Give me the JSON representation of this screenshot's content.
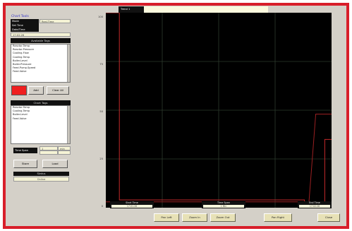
{
  "app_title": "Chart Tools",
  "controls": {
    "row1_left": "Mode",
    "row1_right": "Real-Time",
    "row2": "Set Time",
    "row3": "Date/Time",
    "row4": "17:02:26"
  },
  "available_tags": {
    "header": "Available Tags",
    "items": [
      "Reactor.Temp",
      "Reactor.Pressure",
      "Cooling.Flow",
      "Cooling.Temp",
      "Boiler.Level",
      "Boiler.Pressure",
      "Feed.Pump.Speed",
      "Feed.Valve"
    ]
  },
  "pen": {
    "color": "#ef1f1f",
    "add_label": "Add",
    "clear_label": "Clear All"
  },
  "chart_tags": {
    "header": "Chart Tags",
    "items": [
      "Reactor.Temp",
      "Cooling.Temp",
      "Boiler.Level",
      "Feed.Valve"
    ]
  },
  "span": {
    "label": "Time Span",
    "value": "1",
    "unit": "min"
  },
  "buttons": {
    "store": "Store",
    "load": "Load"
  },
  "footer_panel": {
    "label": "Status",
    "value": "Online"
  },
  "chart": {
    "title": "Trend 1",
    "subtitle": "",
    "y_ticks": [
      "100",
      "75",
      "50",
      "25",
      "0"
    ],
    "left_axis": {
      "label": "Start Time",
      "value": "17:01:26"
    },
    "center_axis": {
      "label": "Time Span",
      "value": "1 Min"
    },
    "right_axis": {
      "label": "End Time",
      "value": "17:02:26"
    }
  },
  "bottom_buttons": {
    "pan_left": "Pan Left",
    "zoom_in": "Zoom In",
    "zoom_out": "Zoom Out",
    "pan_right": "Pan Right",
    "close": "Close"
  },
  "chart_data": {
    "type": "line",
    "title": "Trend 1",
    "xlabel": "",
    "ylabel": "",
    "ylim": [
      0,
      100
    ],
    "grid": true,
    "series": [
      {
        "color": "#c3282a",
        "x": [
          0,
          0.06,
          0.06,
          0.88,
          0.88,
          0.97,
          0.97,
          1.0
        ],
        "values": [
          100,
          100,
          4,
          4,
          2,
          2,
          35,
          35
        ]
      },
      {
        "color": "#9b2022",
        "x": [
          0,
          0.88,
          0.9,
          0.93,
          0.96,
          1.0
        ],
        "values": [
          3,
          3,
          3,
          48,
          48,
          48
        ]
      }
    ]
  }
}
